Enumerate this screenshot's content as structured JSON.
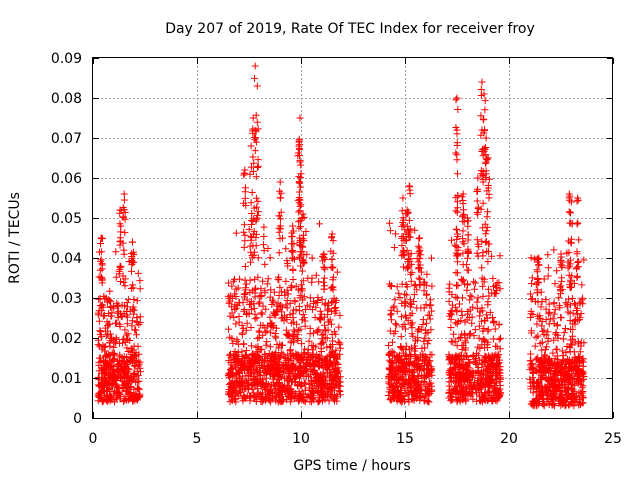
{
  "chart_data": {
    "type": "scatter",
    "title": "Day 207 of 2019, Rate Of TEC Index for receiver froy",
    "xlabel": "GPS time / hours",
    "ylabel": "ROTI / TECUs",
    "xlim": [
      0,
      25
    ],
    "ylim": [
      0,
      0.09
    ],
    "grid": true,
    "marker": "plus",
    "series_color": "#ff0000",
    "x_ticks": [
      {
        "value": 0,
        "label": "0"
      },
      {
        "value": 5,
        "label": "5"
      },
      {
        "value": 10,
        "label": "10"
      },
      {
        "value": 15,
        "label": "15"
      },
      {
        "value": 20,
        "label": "20"
      },
      {
        "value": 25,
        "label": "25"
      }
    ],
    "y_ticks": [
      {
        "value": 0,
        "label": "0"
      },
      {
        "value": 0.01,
        "label": "0.01"
      },
      {
        "value": 0.02,
        "label": "0.02"
      },
      {
        "value": 0.03,
        "label": "0.03"
      },
      {
        "value": 0.04,
        "label": "0.04"
      },
      {
        "value": 0.05,
        "label": "0.05"
      },
      {
        "value": 0.06,
        "label": "0.06"
      },
      {
        "value": 0.07,
        "label": "0.07"
      },
      {
        "value": 0.08,
        "label": "0.08"
      },
      {
        "value": 0.09,
        "label": "0.09"
      }
    ],
    "clusters": [
      {
        "x_start": 0.25,
        "x_end": 2.3,
        "typical": [
          0.004,
          0.03
        ],
        "peaks": [
          [
            1.3,
            0.052
          ],
          [
            1.5,
            0.056
          ],
          [
            0.4,
            0.045
          ],
          [
            1.9,
            0.044
          ]
        ]
      },
      {
        "x_start": 6.5,
        "x_end": 10.9,
        "typical": [
          0.004,
          0.035
        ],
        "peaks": [
          [
            7.8,
            0.088
          ],
          [
            7.9,
            0.083
          ],
          [
            7.7,
            0.075
          ],
          [
            7.6,
            0.068
          ],
          [
            7.3,
            0.062
          ],
          [
            9.95,
            0.075
          ],
          [
            9.9,
            0.069
          ],
          [
            9.95,
            0.064
          ],
          [
            9.6,
            0.048
          ],
          [
            9.0,
            0.059
          ],
          [
            10.1,
            0.051
          ]
        ]
      },
      {
        "x_start": 10.9,
        "x_end": 11.9,
        "typical": [
          0.004,
          0.03
        ],
        "peaks": [
          [
            11.5,
            0.046
          ],
          [
            11.1,
            0.041
          ]
        ]
      },
      {
        "x_start": 14.2,
        "x_end": 16.3,
        "typical": [
          0.004,
          0.035
        ],
        "peaks": [
          [
            15.2,
            0.058
          ],
          [
            15.1,
            0.052
          ],
          [
            14.9,
            0.055
          ],
          [
            15.7,
            0.045
          ]
        ]
      },
      {
        "x_start": 17.1,
        "x_end": 19.6,
        "typical": [
          0.004,
          0.035
        ],
        "peaks": [
          [
            17.5,
            0.08
          ],
          [
            17.5,
            0.072
          ],
          [
            18.7,
            0.084
          ],
          [
            18.8,
            0.081
          ],
          [
            18.9,
            0.07
          ],
          [
            19.0,
            0.065
          ],
          [
            18.5,
            0.06
          ],
          [
            17.8,
            0.056
          ],
          [
            18.0,
            0.05
          ]
        ]
      },
      {
        "x_start": 21.0,
        "x_end": 23.6,
        "typical": [
          0.003,
          0.03
        ],
        "peaks": [
          [
            22.9,
            0.056
          ],
          [
            23.0,
            0.054
          ],
          [
            23.3,
            0.055
          ],
          [
            22.5,
            0.041
          ],
          [
            21.4,
            0.04
          ]
        ]
      }
    ]
  }
}
